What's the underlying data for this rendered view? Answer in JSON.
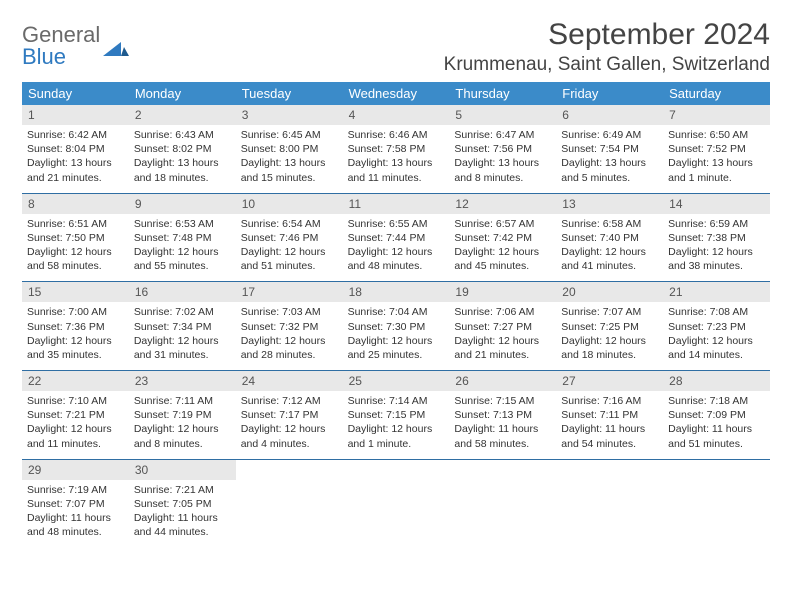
{
  "logo": {
    "top": "General",
    "bottom": "Blue",
    "mark_color": "#2f7ac0"
  },
  "title": "September 2024",
  "location": "Krummenau, Saint Gallen, Switzerland",
  "colors": {
    "header_bg": "#3b8bc9",
    "header_text": "#ffffff",
    "daynum_bg": "#e8e8e8",
    "week_border": "#2f6ea3",
    "body_text": "#333333"
  },
  "layout": {
    "columns": 7,
    "rows": 5,
    "cell_font_size_pt": 8,
    "header_font_size_pt": 10,
    "title_font_size_pt": 22,
    "location_font_size_pt": 14
  },
  "day_names": [
    "Sunday",
    "Monday",
    "Tuesday",
    "Wednesday",
    "Thursday",
    "Friday",
    "Saturday"
  ],
  "weeks": [
    [
      {
        "n": "1",
        "sr": "Sunrise: 6:42 AM",
        "ss": "Sunset: 8:04 PM",
        "d1": "Daylight: 13 hours",
        "d2": "and 21 minutes."
      },
      {
        "n": "2",
        "sr": "Sunrise: 6:43 AM",
        "ss": "Sunset: 8:02 PM",
        "d1": "Daylight: 13 hours",
        "d2": "and 18 minutes."
      },
      {
        "n": "3",
        "sr": "Sunrise: 6:45 AM",
        "ss": "Sunset: 8:00 PM",
        "d1": "Daylight: 13 hours",
        "d2": "and 15 minutes."
      },
      {
        "n": "4",
        "sr": "Sunrise: 6:46 AM",
        "ss": "Sunset: 7:58 PM",
        "d1": "Daylight: 13 hours",
        "d2": "and 11 minutes."
      },
      {
        "n": "5",
        "sr": "Sunrise: 6:47 AM",
        "ss": "Sunset: 7:56 PM",
        "d1": "Daylight: 13 hours",
        "d2": "and 8 minutes."
      },
      {
        "n": "6",
        "sr": "Sunrise: 6:49 AM",
        "ss": "Sunset: 7:54 PM",
        "d1": "Daylight: 13 hours",
        "d2": "and 5 minutes."
      },
      {
        "n": "7",
        "sr": "Sunrise: 6:50 AM",
        "ss": "Sunset: 7:52 PM",
        "d1": "Daylight: 13 hours",
        "d2": "and 1 minute."
      }
    ],
    [
      {
        "n": "8",
        "sr": "Sunrise: 6:51 AM",
        "ss": "Sunset: 7:50 PM",
        "d1": "Daylight: 12 hours",
        "d2": "and 58 minutes."
      },
      {
        "n": "9",
        "sr": "Sunrise: 6:53 AM",
        "ss": "Sunset: 7:48 PM",
        "d1": "Daylight: 12 hours",
        "d2": "and 55 minutes."
      },
      {
        "n": "10",
        "sr": "Sunrise: 6:54 AM",
        "ss": "Sunset: 7:46 PM",
        "d1": "Daylight: 12 hours",
        "d2": "and 51 minutes."
      },
      {
        "n": "11",
        "sr": "Sunrise: 6:55 AM",
        "ss": "Sunset: 7:44 PM",
        "d1": "Daylight: 12 hours",
        "d2": "and 48 minutes."
      },
      {
        "n": "12",
        "sr": "Sunrise: 6:57 AM",
        "ss": "Sunset: 7:42 PM",
        "d1": "Daylight: 12 hours",
        "d2": "and 45 minutes."
      },
      {
        "n": "13",
        "sr": "Sunrise: 6:58 AM",
        "ss": "Sunset: 7:40 PM",
        "d1": "Daylight: 12 hours",
        "d2": "and 41 minutes."
      },
      {
        "n": "14",
        "sr": "Sunrise: 6:59 AM",
        "ss": "Sunset: 7:38 PM",
        "d1": "Daylight: 12 hours",
        "d2": "and 38 minutes."
      }
    ],
    [
      {
        "n": "15",
        "sr": "Sunrise: 7:00 AM",
        "ss": "Sunset: 7:36 PM",
        "d1": "Daylight: 12 hours",
        "d2": "and 35 minutes."
      },
      {
        "n": "16",
        "sr": "Sunrise: 7:02 AM",
        "ss": "Sunset: 7:34 PM",
        "d1": "Daylight: 12 hours",
        "d2": "and 31 minutes."
      },
      {
        "n": "17",
        "sr": "Sunrise: 7:03 AM",
        "ss": "Sunset: 7:32 PM",
        "d1": "Daylight: 12 hours",
        "d2": "and 28 minutes."
      },
      {
        "n": "18",
        "sr": "Sunrise: 7:04 AM",
        "ss": "Sunset: 7:30 PM",
        "d1": "Daylight: 12 hours",
        "d2": "and 25 minutes."
      },
      {
        "n": "19",
        "sr": "Sunrise: 7:06 AM",
        "ss": "Sunset: 7:27 PM",
        "d1": "Daylight: 12 hours",
        "d2": "and 21 minutes."
      },
      {
        "n": "20",
        "sr": "Sunrise: 7:07 AM",
        "ss": "Sunset: 7:25 PM",
        "d1": "Daylight: 12 hours",
        "d2": "and 18 minutes."
      },
      {
        "n": "21",
        "sr": "Sunrise: 7:08 AM",
        "ss": "Sunset: 7:23 PM",
        "d1": "Daylight: 12 hours",
        "d2": "and 14 minutes."
      }
    ],
    [
      {
        "n": "22",
        "sr": "Sunrise: 7:10 AM",
        "ss": "Sunset: 7:21 PM",
        "d1": "Daylight: 12 hours",
        "d2": "and 11 minutes."
      },
      {
        "n": "23",
        "sr": "Sunrise: 7:11 AM",
        "ss": "Sunset: 7:19 PM",
        "d1": "Daylight: 12 hours",
        "d2": "and 8 minutes."
      },
      {
        "n": "24",
        "sr": "Sunrise: 7:12 AM",
        "ss": "Sunset: 7:17 PM",
        "d1": "Daylight: 12 hours",
        "d2": "and 4 minutes."
      },
      {
        "n": "25",
        "sr": "Sunrise: 7:14 AM",
        "ss": "Sunset: 7:15 PM",
        "d1": "Daylight: 12 hours",
        "d2": "and 1 minute."
      },
      {
        "n": "26",
        "sr": "Sunrise: 7:15 AM",
        "ss": "Sunset: 7:13 PM",
        "d1": "Daylight: 11 hours",
        "d2": "and 58 minutes."
      },
      {
        "n": "27",
        "sr": "Sunrise: 7:16 AM",
        "ss": "Sunset: 7:11 PM",
        "d1": "Daylight: 11 hours",
        "d2": "and 54 minutes."
      },
      {
        "n": "28",
        "sr": "Sunrise: 7:18 AM",
        "ss": "Sunset: 7:09 PM",
        "d1": "Daylight: 11 hours",
        "d2": "and 51 minutes."
      }
    ],
    [
      {
        "n": "29",
        "sr": "Sunrise: 7:19 AM",
        "ss": "Sunset: 7:07 PM",
        "d1": "Daylight: 11 hours",
        "d2": "and 48 minutes."
      },
      {
        "n": "30",
        "sr": "Sunrise: 7:21 AM",
        "ss": "Sunset: 7:05 PM",
        "d1": "Daylight: 11 hours",
        "d2": "and 44 minutes."
      },
      {
        "empty": true
      },
      {
        "empty": true
      },
      {
        "empty": true
      },
      {
        "empty": true
      },
      {
        "empty": true
      }
    ]
  ]
}
